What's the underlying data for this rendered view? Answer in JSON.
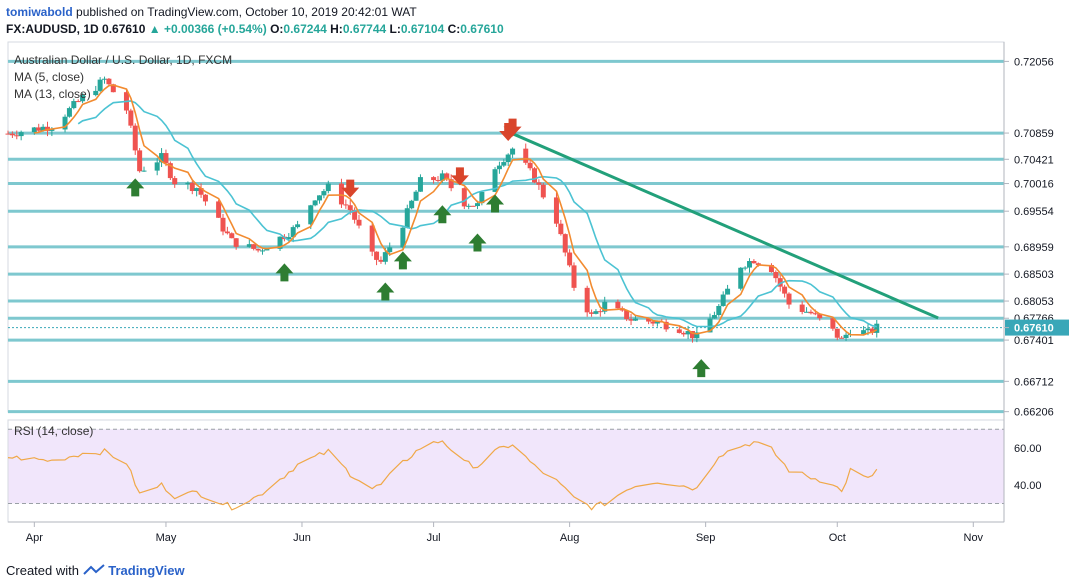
{
  "header": {
    "user": "tomiwabold",
    "published": "published on TradingView.com, October 10, 2019 20:42:01 WAT",
    "symbol": "FX:AUDUSD, 1D",
    "price": "0.67610",
    "change": "▲ +0.00366 (+0.54%)",
    "ohlc_o_label": "O:",
    "ohlc_o": "0.67244",
    "ohlc_h_label": "H:",
    "ohlc_h": "0.67744",
    "ohlc_l_label": "L:",
    "ohlc_l": "0.67104",
    "ohlc_c_label": "C:",
    "ohlc_c": "0.67610"
  },
  "legend": {
    "title": "Australian Dollar / U.S. Dollar, 1D, FXCM",
    "ma5": "MA (5, close)",
    "ma13": "MA (13, close)",
    "rsi": "RSI (14, close)"
  },
  "footer": {
    "created": "Created with",
    "brand": "TradingView"
  },
  "colors": {
    "up": "#26a69a",
    "down": "#ef5350",
    "hline": "#7ec8cf",
    "trend": "#22a07a",
    "ma5": "#f28b30",
    "ma13": "#4cc3d3",
    "rsi": "#f0a848",
    "rsi_band": "#f1e6fb",
    "arrow_up": "#2e7d32",
    "arrow_down": "#d9452b",
    "current_label": "#39a7b8"
  },
  "chart_data": {
    "type": "candlestick",
    "symbol": "AUDUSD",
    "interval": "1D",
    "x_labels": [
      "Apr",
      "May",
      "Jun",
      "Jul",
      "Aug",
      "Sep",
      "Oct",
      "Nov"
    ],
    "price_axis_labels": [
      "0.72056",
      "0.70859",
      "0.70421",
      "0.70016",
      "0.69554",
      "0.68959",
      "0.68503",
      "0.68053",
      "0.67766",
      "0.67610",
      "0.67401",
      "0.66712",
      "0.66206"
    ],
    "horizontal_levels": [
      0.72056,
      0.70859,
      0.70421,
      0.70016,
      0.69554,
      0.68959,
      0.68503,
      0.68053,
      0.67766,
      0.67401,
      0.66712,
      0.66206
    ],
    "current_price": 0.6761,
    "ylim": [
      0.662,
      0.7238
    ],
    "price_path": [
      [
        "2019-03-26",
        0.7085
      ],
      [
        "2019-04-05",
        0.7098
      ],
      [
        "2019-04-12",
        0.7145
      ],
      [
        "2019-04-17",
        0.7175
      ],
      [
        "2019-04-22",
        0.7125
      ],
      [
        "2019-04-25",
        0.7023
      ],
      [
        "2019-04-30",
        0.7045
      ],
      [
        "2019-05-03",
        0.7005
      ],
      [
        "2019-05-08",
        0.6995
      ],
      [
        "2019-05-13",
        0.6938
      ],
      [
        "2019-05-16",
        0.6905
      ],
      [
        "2019-05-22",
        0.689
      ],
      [
        "2019-05-28",
        0.6915
      ],
      [
        "2019-05-31",
        0.693
      ],
      [
        "2019-06-04",
        0.698
      ],
      [
        "2019-06-07",
        0.6995
      ],
      [
        "2019-06-12",
        0.6958
      ],
      [
        "2019-06-17",
        0.688
      ],
      [
        "2019-06-19",
        0.687
      ],
      [
        "2019-06-24",
        0.6935
      ],
      [
        "2019-06-28",
        0.7005
      ],
      [
        "2019-07-03",
        0.7012
      ],
      [
        "2019-07-08",
        0.697
      ],
      [
        "2019-07-11",
        0.6965
      ],
      [
        "2019-07-15",
        0.703
      ],
      [
        "2019-07-19",
        0.706
      ],
      [
        "2019-07-24",
        0.701
      ],
      [
        "2019-07-29",
        0.694
      ],
      [
        "2019-08-02",
        0.683
      ],
      [
        "2019-08-06",
        0.678
      ],
      [
        "2019-08-09",
        0.68
      ],
      [
        "2019-08-15",
        0.6775
      ],
      [
        "2019-08-21",
        0.677
      ],
      [
        "2019-08-26",
        0.676
      ],
      [
        "2019-08-30",
        0.6745
      ],
      [
        "2019-09-04",
        0.6795
      ],
      [
        "2019-09-09",
        0.6865
      ],
      [
        "2019-09-12",
        0.6875
      ],
      [
        "2019-09-16",
        0.686
      ],
      [
        "2019-09-20",
        0.68
      ],
      [
        "2019-09-25",
        0.6785
      ],
      [
        "2019-09-30",
        0.6755
      ],
      [
        "2019-10-02",
        0.674
      ],
      [
        "2019-10-04",
        0.6758
      ],
      [
        "2019-10-08",
        0.6752
      ],
      [
        "2019-10-10",
        0.6761
      ]
    ],
    "trendline": [
      [
        "2019-07-18",
        0.7088
      ],
      [
        "2019-10-24",
        0.6777
      ]
    ],
    "signal_arrows": {
      "up": [
        "2019-04-24",
        "2019-05-28",
        "2019-06-20",
        "2019-06-24",
        "2019-07-03",
        "2019-07-11",
        "2019-07-15",
        "2019-08-31"
      ],
      "down": [
        "2019-06-12",
        "2019-07-07",
        "2019-07-18",
        "2019-07-19"
      ]
    },
    "rsi": {
      "ylim": [
        20,
        75
      ],
      "axis_labels": [
        "60.00",
        "40.00"
      ],
      "bands": [
        70,
        30
      ],
      "values": [
        [
          "2019-03-26",
          55
        ],
        [
          "2019-04-05",
          53
        ],
        [
          "2019-04-12",
          57
        ],
        [
          "2019-04-17",
          58
        ],
        [
          "2019-04-22",
          52
        ],
        [
          "2019-04-25",
          35
        ],
        [
          "2019-04-30",
          40
        ],
        [
          "2019-05-03",
          34
        ],
        [
          "2019-05-08",
          36
        ],
        [
          "2019-05-13",
          31
        ],
        [
          "2019-05-16",
          28
        ],
        [
          "2019-05-22",
          34
        ],
        [
          "2019-05-28",
          45
        ],
        [
          "2019-05-31",
          51
        ],
        [
          "2019-06-04",
          55
        ],
        [
          "2019-06-07",
          58
        ],
        [
          "2019-06-12",
          46
        ],
        [
          "2019-06-17",
          38
        ],
        [
          "2019-06-19",
          40
        ],
        [
          "2019-06-24",
          52
        ],
        [
          "2019-06-28",
          60
        ],
        [
          "2019-07-03",
          64
        ],
        [
          "2019-07-08",
          52
        ],
        [
          "2019-07-11",
          50
        ],
        [
          "2019-07-15",
          58
        ],
        [
          "2019-07-19",
          62
        ],
        [
          "2019-07-24",
          50
        ],
        [
          "2019-07-29",
          42
        ],
        [
          "2019-08-02",
          33
        ],
        [
          "2019-08-06",
          28
        ],
        [
          "2019-08-09",
          30
        ],
        [
          "2019-08-15",
          39
        ],
        [
          "2019-08-21",
          42
        ],
        [
          "2019-08-26",
          40
        ],
        [
          "2019-08-30",
          38
        ],
        [
          "2019-09-04",
          56
        ],
        [
          "2019-09-09",
          61
        ],
        [
          "2019-09-12",
          63
        ],
        [
          "2019-09-16",
          59
        ],
        [
          "2019-09-20",
          48
        ],
        [
          "2019-09-25",
          44
        ],
        [
          "2019-09-30",
          41
        ],
        [
          "2019-10-02",
          36
        ],
        [
          "2019-10-04",
          48
        ],
        [
          "2019-10-08",
          43
        ],
        [
          "2019-10-10",
          48
        ]
      ]
    }
  }
}
